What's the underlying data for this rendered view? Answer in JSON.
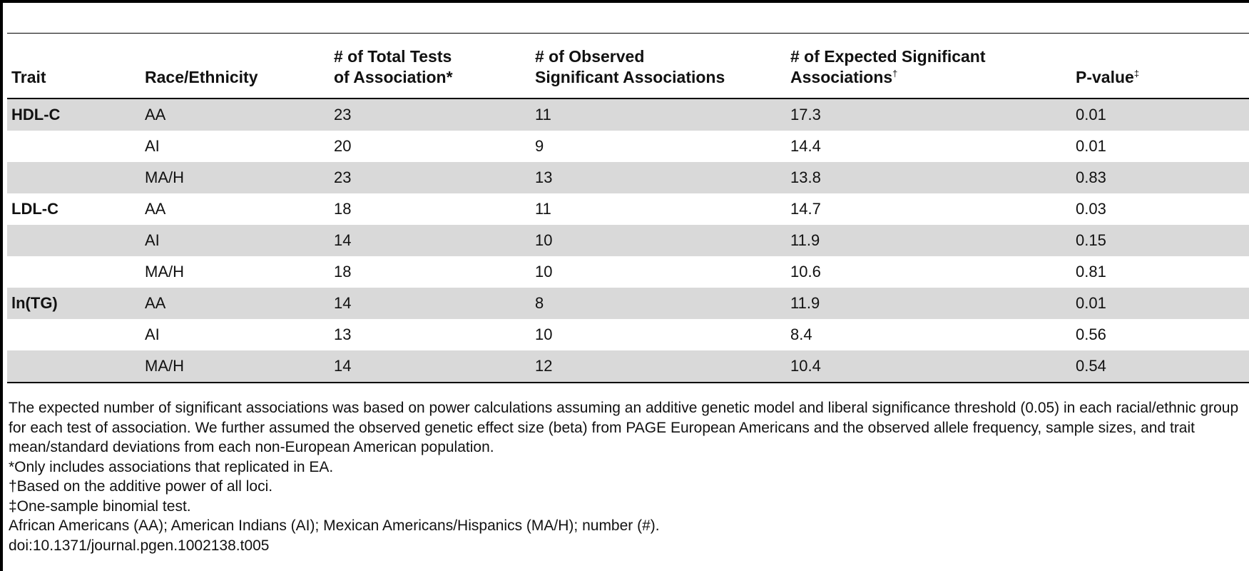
{
  "table": {
    "headers": {
      "trait": "Trait",
      "race": "Race/Ethnicity",
      "total_tests_line1": "# of Total Tests",
      "total_tests_line2": "of Association*",
      "observed_line1": "# of Observed",
      "observed_line2": "Significant Associations",
      "expected_line1": "# of Expected Significant",
      "expected_line2": "Associations",
      "expected_mark": "†",
      "pvalue": "P-value",
      "pvalue_mark": "‡"
    },
    "rows": [
      {
        "trait": "HDL-C",
        "race": "AA",
        "total": "23",
        "observed": "11",
        "expected": "17.3",
        "p": "0.01"
      },
      {
        "trait": "",
        "race": "AI",
        "total": "20",
        "observed": "9",
        "expected": "14.4",
        "p": "0.01"
      },
      {
        "trait": "",
        "race": "MA/H",
        "total": "23",
        "observed": "13",
        "expected": "13.8",
        "p": "0.83"
      },
      {
        "trait": "LDL-C",
        "race": "AA",
        "total": "18",
        "observed": "11",
        "expected": "14.7",
        "p": "0.03"
      },
      {
        "trait": "",
        "race": "AI",
        "total": "14",
        "observed": "10",
        "expected": "11.9",
        "p": "0.15"
      },
      {
        "trait": "",
        "race": "MA/H",
        "total": "18",
        "observed": "10",
        "expected": "10.6",
        "p": "0.81"
      },
      {
        "trait": "ln(TG)",
        "race": "AA",
        "total": "14",
        "observed": "8",
        "expected": "11.9",
        "p": "0.01"
      },
      {
        "trait": "",
        "race": "AI",
        "total": "13",
        "observed": "10",
        "expected": "8.4",
        "p": "0.56"
      },
      {
        "trait": "",
        "race": "MA/H",
        "total": "14",
        "observed": "12",
        "expected": "10.4",
        "p": "0.54"
      }
    ]
  },
  "notes": {
    "main": "The expected number of significant associations was based on power calculations assuming an additive genetic model and liberal significance threshold (0.05) in each racial/ethnic group for each test of association. We further assumed the observed genetic effect size (beta) from PAGE European Americans and the observed allele frequency, sample sizes, and trait mean/standard deviations from each non-European American population.",
    "star": "*Only includes associations that replicated in EA.",
    "dagger": "†Based on the additive power of all loci.",
    "ddagger": "‡One-sample binomial test.",
    "abbrev": "African Americans (AA); American Indians (AI); Mexican Americans/Hispanics (MA/H); number (#).",
    "doi": "doi:10.1371/journal.pgen.1002138.t005"
  },
  "colors": {
    "shaded_row": "#d9d9d9",
    "rule": "#000000"
  }
}
